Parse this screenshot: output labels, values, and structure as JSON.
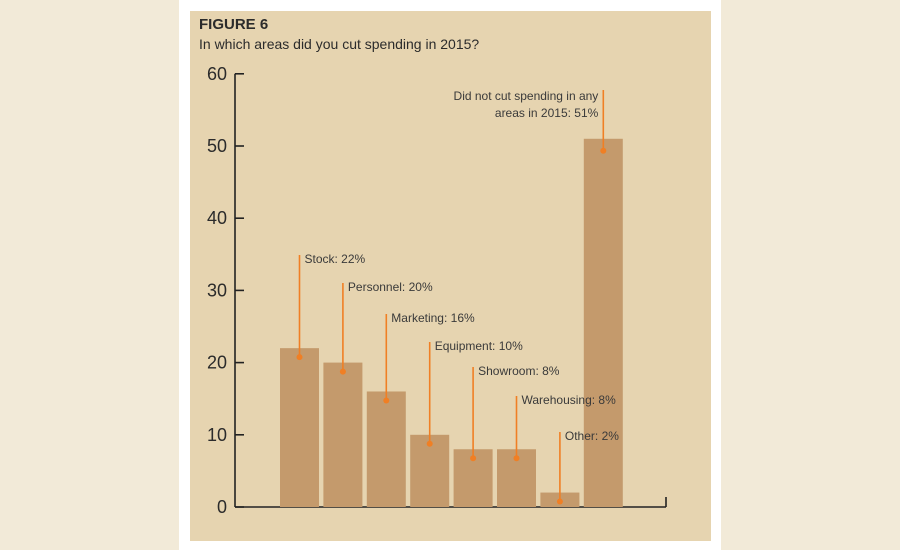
{
  "figure": {
    "label": "FIGURE 6",
    "subtitle": "In which areas did you cut spending in 2015?"
  },
  "colors": {
    "bar": "#c49a6c",
    "accent": "#f07f24",
    "axis": "#222222",
    "panel": "#e6d4b0",
    "page": "#f2ead8"
  },
  "chart_data": {
    "type": "bar",
    "categories": [
      "Stock",
      "Personnel",
      "Marketing",
      "Equipment",
      "Showroom",
      "Warehousing",
      "Other",
      "Did not cut spending in any areas in 2015"
    ],
    "values": [
      22,
      20,
      16,
      10,
      8,
      8,
      2,
      51
    ],
    "unit": "%",
    "ylim": [
      0,
      60
    ],
    "yticks": [
      0,
      10,
      20,
      30,
      40,
      50,
      60
    ],
    "grid": false,
    "annotations": [
      [
        "Stock: 22%"
      ],
      [
        "Personnel: 20%"
      ],
      [
        "Marketing: 16%"
      ],
      [
        "Equipment: 10%"
      ],
      [
        "Showroom: 8%"
      ],
      [
        "Warehousing: 8%"
      ],
      [
        "Other: 2%"
      ],
      [
        "Did not cut spending in any",
        "areas in 2015: 51%"
      ]
    ]
  }
}
